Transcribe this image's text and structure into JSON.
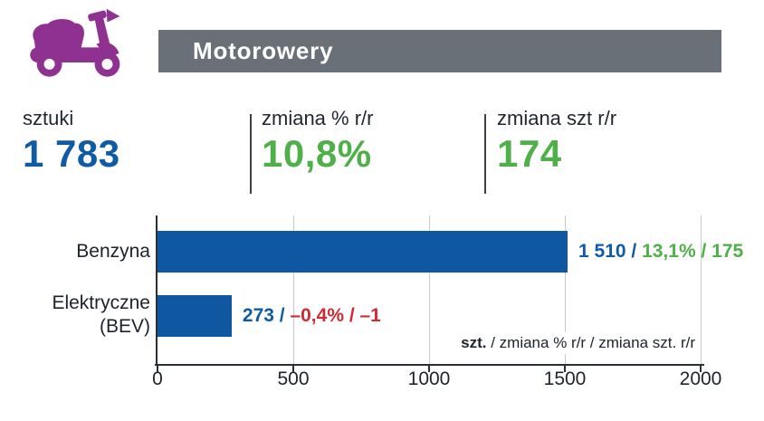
{
  "colors": {
    "purple": "#8e3190",
    "header_gray": "#6a7078",
    "blue": "#0f5ba5",
    "bar_blue": "#0f57a0",
    "green": "#4fb04a",
    "red": "#cf2b34",
    "dark": "#20242c",
    "grid": "#c9c9c9"
  },
  "header": {
    "title": "Motorowery",
    "icon": "scooter-icon"
  },
  "stats": [
    {
      "label": "sztuki",
      "value": "1 783"
    },
    {
      "label": "zmiana % r/r",
      "value": "10,8%"
    },
    {
      "label": "zmiana szt r/r",
      "value": "174"
    }
  ],
  "chart_data": {
    "type": "bar",
    "orientation": "horizontal",
    "title": "",
    "xlabel": "",
    "ylabel": "",
    "categories": [
      "Benzyna",
      "Elektryczne (BEV)"
    ],
    "series": [
      {
        "name": "szt.",
        "values": [
          1510,
          273
        ]
      },
      {
        "name": "zmiana % r/r",
        "values": [
          13.1,
          -0.4
        ]
      },
      {
        "name": "zmiana szt. r/r",
        "values": [
          175,
          -1
        ]
      }
    ],
    "xlim": [
      0,
      2000
    ],
    "xticks": [
      0,
      500,
      1000,
      1500,
      2000
    ],
    "xtick_labels": [
      "0",
      "500",
      "1000",
      "1500",
      "2000"
    ],
    "grid": true,
    "legend_position": "bottom-right",
    "legend": {
      "bold": "szt.",
      "rest": " / zmiana % r/r / zmiana szt. r/r"
    },
    "bar_labels": [
      {
        "units": "1 510",
        "sep1": " / ",
        "change": "13,1% / 175",
        "positive": true
      },
      {
        "units": "273",
        "sep1": " / ",
        "change": "–0,4% / –1",
        "positive": false
      }
    ]
  }
}
